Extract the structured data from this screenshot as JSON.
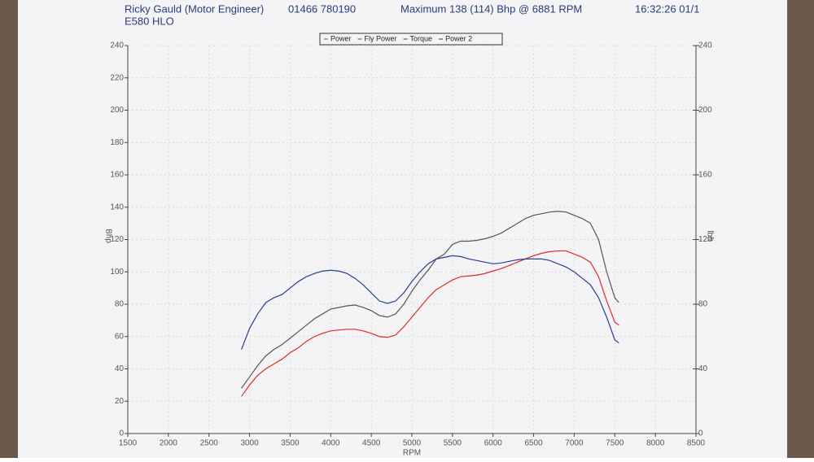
{
  "chart_data": {
    "type": "line",
    "header": {
      "company": "Ricky Gauld (Motor Engineer)",
      "phone": "01466 780190",
      "summary": "Maximum 138 (114) Bhp @ 6881 RPM",
      "timestamp": "16:32:26 01/1",
      "registration": "E580 HLO"
    },
    "x_label": "RPM",
    "y_label": "Bhp",
    "y2_label": "lbft",
    "x": [
      2900,
      3000,
      3100,
      3200,
      3300,
      3400,
      3500,
      3600,
      3700,
      3800,
      3900,
      4000,
      4100,
      4200,
      4300,
      4400,
      4500,
      4600,
      4700,
      4800,
      4900,
      5000,
      5100,
      5200,
      5300,
      5400,
      5500,
      5600,
      5700,
      5800,
      5900,
      6000,
      6100,
      6200,
      6300,
      6400,
      6500,
      6600,
      6700,
      6800,
      6900,
      7000,
      7100,
      7200,
      7300,
      7400,
      7500,
      7550
    ],
    "series": [
      {
        "name": "Power",
        "color": "#e02a2a",
        "values": [
          23,
          30,
          36,
          40,
          43,
          46,
          50,
          53,
          57,
          60,
          62,
          63.5,
          64,
          64.5,
          64.5,
          63.5,
          62,
          60,
          59.5,
          61,
          66,
          72,
          78,
          84,
          89,
          92,
          95,
          97,
          97.5,
          98,
          99,
          100.5,
          102,
          104,
          106,
          108,
          110,
          111.5,
          112.5,
          113,
          113,
          111,
          109,
          106,
          97,
          82,
          69,
          67
        ]
      },
      {
        "name": "Fly Power",
        "color": "#555555",
        "values": [
          28,
          35,
          42,
          48,
          52,
          55,
          59,
          63,
          67,
          71,
          74,
          77,
          78,
          79,
          79.5,
          78,
          76,
          73,
          72,
          74,
          80,
          88,
          95,
          101,
          108,
          111,
          117,
          119,
          119,
          119.5,
          120.5,
          122,
          124,
          127,
          130,
          133,
          135,
          136,
          137,
          137.5,
          137,
          135,
          133,
          130,
          120,
          100,
          84,
          81
        ]
      },
      {
        "name": "Torque",
        "color": "#2a3f8f",
        "axis": "y2",
        "values": [
          52,
          65,
          74,
          81,
          84,
          86,
          90,
          94,
          97,
          99,
          100.5,
          101,
          100.5,
          99,
          96,
          92,
          87,
          82,
          80.5,
          82,
          87,
          94,
          100,
          105,
          108,
          109,
          110,
          109.5,
          108,
          107,
          106,
          105,
          105.5,
          106.5,
          107.5,
          108,
          108,
          108,
          107,
          105,
          103,
          100,
          96,
          92,
          84,
          72,
          58,
          56
        ]
      },
      {
        "name": "Power 2",
        "color": "#333333",
        "values": [
          null,
          null,
          null,
          null,
          null,
          null,
          null,
          null,
          null,
          null,
          null,
          null,
          null,
          null,
          null,
          null,
          null,
          null,
          null,
          null,
          null,
          null,
          null,
          null,
          null,
          null,
          null,
          null,
          null,
          null,
          null,
          null,
          null,
          null,
          null,
          null,
          null,
          null,
          null,
          null,
          null,
          null,
          null,
          null,
          null,
          null,
          null,
          null
        ]
      }
    ],
    "xlim": [
      1500,
      8500
    ],
    "xticks": [
      1500,
      2000,
      2500,
      3000,
      3500,
      4000,
      4500,
      5000,
      5500,
      6000,
      6500,
      7000,
      7500,
      8000,
      8500
    ],
    "ylim": [
      0,
      240
    ],
    "yticks": [
      0,
      20,
      40,
      60,
      80,
      100,
      120,
      140,
      160,
      180,
      200,
      220,
      240
    ],
    "y2lim": [
      0,
      240
    ],
    "y2ticks": [
      0,
      40,
      80,
      120,
      160,
      200,
      240
    ],
    "grid": true
  }
}
